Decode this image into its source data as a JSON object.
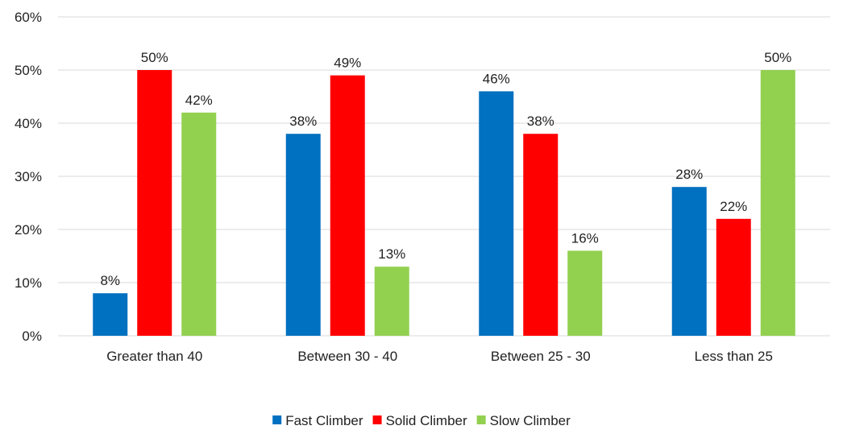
{
  "chart_data": {
    "type": "bar",
    "categories": [
      "Greater than 40",
      "Between 30 - 40",
      "Between 25 - 30",
      "Less than 25"
    ],
    "series": [
      {
        "name": "Fast Climber",
        "color": "#0070C0",
        "values": [
          8,
          38,
          46,
          28
        ]
      },
      {
        "name": "Solid Climber",
        "color": "#FF0000",
        "values": [
          50,
          49,
          38,
          22
        ]
      },
      {
        "name": "Slow Climber",
        "color": "#92D050",
        "values": [
          42,
          13,
          16,
          50
        ]
      }
    ],
    "value_format": "percent",
    "ylim": [
      0,
      60
    ],
    "y_ticks": [
      0,
      10,
      20,
      30,
      40,
      50,
      60
    ],
    "y_tick_labels": [
      "0%",
      "10%",
      "20%",
      "30%",
      "40%",
      "50%",
      "60%"
    ],
    "data_labels": [
      [
        "8%",
        "38%",
        "46%",
        "28%"
      ],
      [
        "50%",
        "49%",
        "38%",
        "22%"
      ],
      [
        "42%",
        "13%",
        "16%",
        "50%"
      ]
    ],
    "grid": true,
    "gridline_color": "#D9D9D9",
    "legend_position": "bottom",
    "title": "",
    "xlabel": "",
    "ylabel": ""
  }
}
